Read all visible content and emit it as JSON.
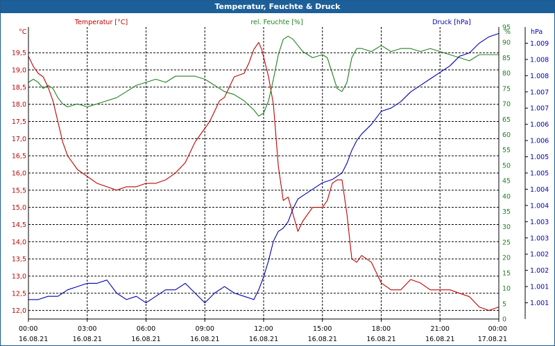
{
  "window": {
    "title": "Temperatur, Feuchte & Druck"
  },
  "colors": {
    "temperature": "#c00000",
    "humidity": "#208020",
    "pressure": "#0000b0",
    "grid": "#000000",
    "title_bar": "#1c5f99"
  },
  "chart_data": {
    "type": "line",
    "title": "Temperatur, Feuchte & Druck",
    "grid": true,
    "x_ticks": [
      {
        "time": "00:00",
        "date": "16.08.21"
      },
      {
        "time": "03:00",
        "date": "16.08.21"
      },
      {
        "time": "06:00",
        "date": "16.08.21"
      },
      {
        "time": "09:00",
        "date": "16.08.21"
      },
      {
        "time": "12:00",
        "date": "16.08.21"
      },
      {
        "time": "15:00",
        "date": "16.08.21"
      },
      {
        "time": "18:00",
        "date": "16.08.21"
      },
      {
        "time": "21:00",
        "date": "16.08.21"
      },
      {
        "time": "00:00",
        "date": "17.08.21"
      }
    ],
    "x_unit": "hours",
    "xlim": [
      0,
      24
    ],
    "axes": {
      "temperature": {
        "unit": "°C",
        "label": "Temperatur [°C]",
        "ylim": [
          11.75,
          20.25
        ],
        "ticks": [
          "12,0",
          "12,5",
          "13,0",
          "13,5",
          "14,0",
          "14,5",
          "15,0",
          "15,5",
          "16,0",
          "16,5",
          "17,0",
          "17,5",
          "18,0",
          "18,5",
          "19,0",
          "19,5"
        ]
      },
      "humidity": {
        "unit": "%",
        "label": "rel. Feuchte [%]",
        "ylim": [
          0,
          95
        ],
        "ticks": [
          "0",
          "5",
          "10",
          "15",
          "20",
          "25",
          "30",
          "35",
          "40",
          "45",
          "50",
          "55",
          "60",
          "65",
          "70",
          "75",
          "80",
          "85",
          "90",
          "95"
        ]
      },
      "pressure": {
        "unit": "hPa",
        "label": "Druck [hPa]",
        "ylim": [
          1000.5,
          1009.5
        ],
        "tick_values": [
          1001,
          1001.5,
          1002,
          1002.5,
          1003,
          1003.5,
          1004,
          1004.5,
          1005,
          1005.5,
          1006,
          1006.5,
          1007,
          1007.5,
          1008,
          1008.5,
          1009
        ],
        "tick_labels": [
          "1.001",
          "1.001",
          "1.002",
          "1.002",
          "1.003",
          "1.003",
          "1.004",
          "1.004",
          "1.005",
          "1.005",
          "1.006",
          "1.006",
          "1.007",
          "1.007",
          "1.008",
          "1.008",
          "1.009"
        ]
      }
    },
    "series": [
      {
        "name": "Temperatur [°C]",
        "axis": "temperature",
        "x": [
          0,
          0.25,
          0.5,
          0.75,
          1,
          1.25,
          1.5,
          1.75,
          2,
          2.25,
          2.5,
          2.75,
          3,
          3.5,
          4,
          4.5,
          5,
          5.5,
          6,
          6.5,
          7,
          7.5,
          8,
          8.5,
          9,
          9.25,
          9.5,
          9.75,
          10,
          10.5,
          11,
          11.25,
          11.5,
          11.75,
          11.9,
          12.25,
          12.5,
          12.75,
          13,
          13.25,
          13.5,
          13.75,
          14,
          14.5,
          15,
          15.25,
          15.5,
          15.75,
          16,
          16.25,
          16.5,
          16.75,
          17,
          17.5,
          18,
          18.5,
          19,
          19.5,
          20,
          20.5,
          21,
          21.5,
          22,
          22.5,
          23,
          23.5,
          24
        ],
        "y": [
          19.4,
          19.1,
          18.9,
          18.8,
          18.5,
          18.1,
          17.5,
          16.9,
          16.5,
          16.3,
          16.1,
          16.0,
          15.9,
          15.7,
          15.6,
          15.5,
          15.6,
          15.6,
          15.7,
          15.7,
          15.8,
          16.0,
          16.3,
          16.9,
          17.3,
          17.5,
          17.8,
          18.1,
          18.2,
          18.8,
          18.9,
          19.2,
          19.6,
          19.8,
          19.6,
          18.8,
          18.0,
          16.2,
          15.2,
          15.3,
          14.8,
          14.3,
          14.6,
          15.0,
          15.0,
          15.2,
          15.7,
          15.8,
          15.8,
          14.8,
          13.5,
          13.4,
          13.6,
          13.4,
          12.8,
          12.6,
          12.6,
          12.9,
          12.8,
          12.6,
          12.6,
          12.6,
          12.5,
          12.4,
          12.1,
          12.0,
          12.1
        ]
      },
      {
        "name": "rel. Feuchte [%]",
        "axis": "humidity",
        "x": [
          0,
          0.25,
          0.5,
          0.75,
          1,
          1.25,
          1.5,
          1.75,
          2,
          2.5,
          3,
          3.5,
          4,
          4.5,
          5,
          5.5,
          6,
          6.5,
          7,
          7.5,
          8,
          8.5,
          9,
          9.5,
          10,
          10.5,
          11,
          11.5,
          11.75,
          12,
          12.25,
          12.5,
          12.75,
          13,
          13.25,
          13.5,
          13.75,
          14,
          14.5,
          15,
          15.25,
          15.5,
          15.75,
          16,
          16.25,
          16.5,
          16.75,
          17,
          17.5,
          18,
          18.5,
          19,
          19.5,
          20,
          20.5,
          21,
          21.5,
          22,
          22.5,
          23,
          23.5,
          24
        ],
        "y": [
          77,
          78,
          77,
          75,
          76,
          75,
          72,
          70,
          69,
          70,
          69,
          70,
          71,
          72,
          74,
          76,
          77,
          78,
          77,
          79,
          79,
          79,
          78,
          76,
          74,
          73,
          71,
          68,
          66,
          67,
          71,
          78,
          86,
          91,
          92,
          91,
          89,
          87,
          85,
          86,
          85,
          80,
          75,
          74,
          77,
          85,
          88,
          88,
          87,
          89,
          87,
          88,
          88,
          87,
          88,
          87,
          86,
          85,
          84,
          86,
          86,
          86
        ]
      },
      {
        "name": "Druck [hPa]",
        "axis": "pressure",
        "x": [
          0,
          0.5,
          1,
          1.5,
          2,
          2.5,
          3,
          3.5,
          4,
          4.5,
          5,
          5.5,
          6,
          6.5,
          7,
          7.5,
          8,
          8.5,
          9,
          9.5,
          10,
          10.5,
          11,
          11.5,
          11.75,
          12,
          12.25,
          12.5,
          12.75,
          13,
          13.25,
          13.5,
          13.75,
          14,
          14.5,
          15,
          15.5,
          16,
          16.25,
          16.5,
          16.75,
          17,
          17.5,
          18,
          18.5,
          19,
          19.5,
          20,
          20.5,
          21,
          21.5,
          22,
          22.5,
          23,
          23.5,
          24
        ],
        "y": [
          1001.1,
          1001.1,
          1001.2,
          1001.2,
          1001.4,
          1001.5,
          1001.6,
          1001.6,
          1001.7,
          1001.3,
          1001.1,
          1001.2,
          1001.0,
          1001.2,
          1001.4,
          1001.4,
          1001.6,
          1001.3,
          1001.0,
          1001.3,
          1001.5,
          1001.3,
          1001.2,
          1001.1,
          1001.4,
          1001.8,
          1002.3,
          1002.9,
          1003.2,
          1003.3,
          1003.5,
          1003.9,
          1004.2,
          1004.3,
          1004.5,
          1004.7,
          1004.8,
          1005.0,
          1005.3,
          1005.7,
          1006.0,
          1006.2,
          1006.5,
          1006.9,
          1007.0,
          1007.2,
          1007.5,
          1007.7,
          1007.9,
          1008.1,
          1008.3,
          1008.6,
          1008.7,
          1009.0,
          1009.2,
          1009.3
        ]
      }
    ]
  }
}
